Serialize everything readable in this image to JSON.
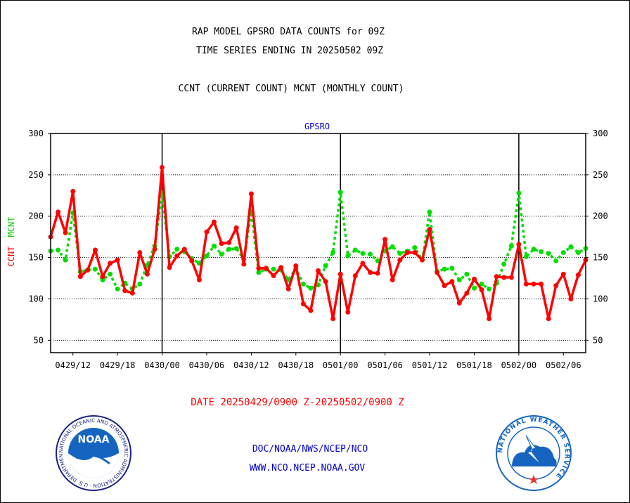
{
  "header": {
    "title_line1": "RAP MODEL GPSRO DATA COUNTS for 09Z",
    "title_line2": "TIME SERIES ENDING IN 20250502 09Z",
    "subtitle": "CCNT (CURRENT COUNT) MCNT (MONTHLY COUNT)"
  },
  "footer": {
    "date_range": "DATE 20250429/0900 Z-20250502/0900 Z",
    "org": "DOC/NOAA/NWS/NCEP/NCO",
    "url": "WWW.NCO.NCEP.NOAA.GOV",
    "date_color": "#ff0000",
    "link_color": "#0000cc"
  },
  "logos": {
    "noaa": {
      "center_text": "NOAA",
      "ring_text": "NATIONAL OCEANIC AND ATMOSPHERIC ADMINISTRATION · U.S. DEPARTMENT OF COMMERCE"
    },
    "nws": {
      "ring_text": "NATIONAL WEATHER SERVICE"
    }
  },
  "chart_data": {
    "type": "line",
    "title": "GPSRO",
    "ylabel_left": [
      "CCNT",
      "MCNT"
    ],
    "ylabel_colors": [
      "#ff0000",
      "#00cc00"
    ],
    "ylim": [
      35,
      300
    ],
    "yticks": [
      50,
      100,
      150,
      200,
      250,
      300
    ],
    "x_start_hours": 0,
    "x_range_hours": [
      0,
      72
    ],
    "x_tick_labels": [
      "0429/12",
      "0429/18",
      "0430/00",
      "0430/06",
      "0430/12",
      "0430/18",
      "0501/00",
      "0501/06",
      "0501/12",
      "0501/18",
      "0502/00",
      "0502/06"
    ],
    "x_tick_hours": [
      3,
      9,
      15,
      21,
      27,
      33,
      39,
      45,
      51,
      57,
      63,
      69
    ],
    "day_dividers_hours": [
      15,
      39,
      63
    ],
    "grid": "horizontal dotted",
    "series": [
      {
        "name": "CCNT",
        "color": "#ff0000",
        "style": "solid",
        "values": [
          175,
          205,
          180,
          230,
          127,
          135,
          159,
          127,
          143,
          147,
          110,
          107,
          156,
          130,
          160,
          259,
          138,
          152,
          160,
          146,
          123,
          181,
          193,
          167,
          168,
          186,
          142,
          227,
          137,
          137,
          128,
          138,
          112,
          140,
          94,
          86,
          134,
          121,
          76,
          130,
          84,
          128,
          143,
          132,
          131,
          172,
          123,
          147,
          156,
          156,
          147,
          184,
          132,
          116,
          121,
          95,
          107,
          124,
          111,
          76,
          127,
          126,
          126,
          166,
          118,
          118,
          118,
          76,
          116,
          130,
          100,
          129,
          147
        ]
      },
      {
        "name": "MCNT",
        "color": "#00dd00",
        "style": "dotted",
        "values": [
          158,
          159,
          147,
          204,
          133,
          135,
          136,
          123,
          130,
          112,
          119,
          112,
          118,
          141,
          164,
          228,
          151,
          160,
          157,
          149,
          143,
          152,
          164,
          154,
          160,
          161,
          148,
          205,
          132,
          136,
          136,
          135,
          123,
          137,
          118,
          113,
          117,
          140,
          156,
          229,
          152,
          159,
          155,
          154,
          146,
          158,
          163,
          155,
          158,
          162,
          147,
          205,
          133,
          136,
          137,
          123,
          130,
          113,
          118,
          112,
          119,
          142,
          164,
          228,
          151,
          160,
          157,
          155,
          146,
          156,
          163,
          156,
          161
        ]
      }
    ]
  }
}
